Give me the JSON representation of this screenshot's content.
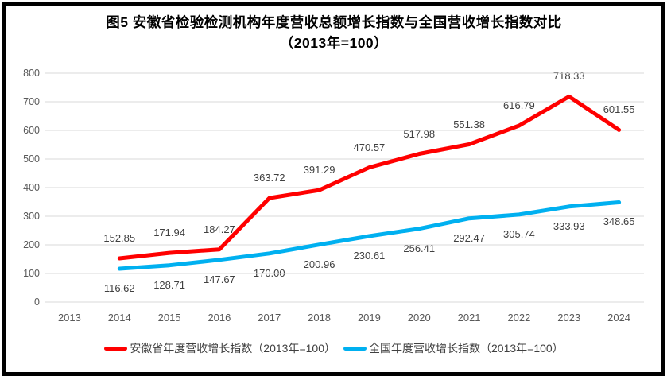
{
  "title": {
    "line1": "图5  安徽省检验检测机构年度营收总额增长指数与全国营收增长指数对比",
    "line2": "（2013年=100）"
  },
  "chart_data": {
    "type": "line",
    "categories": [
      "2013",
      "2014",
      "2015",
      "2016",
      "2017",
      "2018",
      "2019",
      "2020",
      "2021",
      "2022",
      "2023",
      "2024"
    ],
    "y_ticks": [
      "0",
      "100",
      "200",
      "300",
      "400",
      "500",
      "600",
      "700",
      "800"
    ],
    "ylim": [
      0,
      800
    ],
    "ytick_step": 100,
    "grid": "horizontal",
    "legend_position": "bottom",
    "label_decimals": 2,
    "series": [
      {
        "name": "安徽省年度营收增长指数（2013年=100）",
        "color": "#FF0000",
        "start_category": "2014",
        "label_position": "above",
        "values": [
          152.85,
          171.94,
          184.27,
          363.72,
          391.29,
          470.57,
          517.98,
          551.38,
          616.79,
          718.33,
          601.55
        ]
      },
      {
        "name": "全国年度营收增长指数（2013年=100）",
        "color": "#00B0F0",
        "start_category": "2014",
        "label_position": "below",
        "values": [
          116.62,
          128.71,
          147.67,
          170.0,
          200.96,
          230.61,
          256.41,
          292.47,
          305.74,
          333.93,
          348.65
        ]
      }
    ]
  },
  "colors": {
    "grid": "#D9D9D9",
    "axis_text": "#595959",
    "data_label_text": "#404040",
    "border": "#000000"
  }
}
